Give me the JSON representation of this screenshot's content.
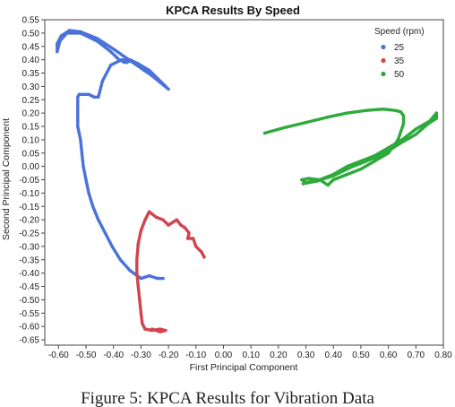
{
  "caption": "Figure 5: KPCA Results for Vibration Data",
  "chart_data": {
    "type": "scatter",
    "title": "KPCA Results By Speed",
    "xlabel": "First Principal Component",
    "ylabel": "Second Principal Component",
    "xlim": [
      -0.65,
      0.8
    ],
    "ylim": [
      -0.67,
      0.55
    ],
    "x_ticks": [
      -0.6,
      -0.5,
      -0.4,
      -0.3,
      -0.2,
      -0.1,
      0.0,
      0.1,
      0.2,
      0.3,
      0.4,
      0.5,
      0.6,
      0.7,
      0.8
    ],
    "x_tick_labels": [
      "-0.60",
      "-0.50",
      "-0.40",
      "-0.30",
      "-0.20",
      "-0.10",
      "0.00",
      "0.10",
      "0.20",
      "0.30",
      "0.40",
      "0.50",
      "0.60",
      "0.70",
      "0.80"
    ],
    "y_ticks": [
      0.55,
      0.5,
      0.45,
      0.4,
      0.35,
      0.3,
      0.25,
      0.2,
      0.15,
      0.1,
      0.05,
      0.0,
      -0.05,
      -0.1,
      -0.15,
      -0.2,
      -0.25,
      -0.3,
      -0.35,
      -0.4,
      -0.45,
      -0.5,
      -0.55,
      -0.6,
      -0.65
    ],
    "y_tick_labels": [
      "0.55",
      "0.50",
      "0.45",
      "0.40",
      "0.35",
      "0.30",
      "0.25",
      "0.20",
      "0.15",
      "0.10",
      "0.05",
      "0.00",
      "-0.05",
      "-0.10",
      "-0.15",
      "-0.20",
      "-0.25",
      "-0.30",
      "-0.35",
      "-0.40",
      "-0.45",
      "-0.50",
      "-0.55",
      "-0.60",
      "-0.65"
    ],
    "grid": false,
    "legend": {
      "title": "Speed (rpm)",
      "placement": "top-right",
      "entries": [
        "25",
        "35",
        "50"
      ]
    },
    "series": [
      {
        "name": "25",
        "color": "#4a72d8",
        "points": [
          [
            -0.2,
            0.29
          ],
          [
            -0.26,
            0.34
          ],
          [
            -0.33,
            0.39
          ],
          [
            -0.4,
            0.44
          ],
          [
            -0.46,
            0.48
          ],
          [
            -0.52,
            0.505
          ],
          [
            -0.56,
            0.51
          ],
          [
            -0.59,
            0.49
          ],
          [
            -0.605,
            0.46
          ],
          [
            -0.605,
            0.43
          ],
          [
            -0.595,
            0.47
          ],
          [
            -0.57,
            0.5
          ],
          [
            -0.52,
            0.5
          ],
          [
            -0.46,
            0.47
          ],
          [
            -0.41,
            0.43
          ],
          [
            -0.38,
            0.4
          ],
          [
            -0.36,
            0.39
          ],
          [
            -0.35,
            0.39
          ],
          [
            -0.34,
            0.4
          ],
          [
            -0.31,
            0.385
          ],
          [
            -0.27,
            0.36
          ],
          [
            -0.24,
            0.33
          ],
          [
            -0.21,
            0.3
          ],
          [
            -0.26,
            0.35
          ],
          [
            -0.32,
            0.39
          ],
          [
            -0.37,
            0.4
          ],
          [
            -0.41,
            0.38
          ],
          [
            -0.44,
            0.32
          ],
          [
            -0.455,
            0.26
          ],
          [
            -0.47,
            0.26
          ],
          [
            -0.49,
            0.27
          ],
          [
            -0.51,
            0.27
          ],
          [
            -0.525,
            0.27
          ],
          [
            -0.53,
            0.26
          ],
          [
            -0.53,
            0.23
          ],
          [
            -0.53,
            0.2
          ],
          [
            -0.53,
            0.15
          ],
          [
            -0.52,
            0.1
          ],
          [
            -0.515,
            0.05
          ],
          [
            -0.51,
            0.0
          ],
          [
            -0.5,
            -0.05
          ],
          [
            -0.49,
            -0.1
          ],
          [
            -0.475,
            -0.15
          ],
          [
            -0.455,
            -0.2
          ],
          [
            -0.43,
            -0.25
          ],
          [
            -0.405,
            -0.3
          ],
          [
            -0.375,
            -0.35
          ],
          [
            -0.34,
            -0.39
          ],
          [
            -0.3,
            -0.42
          ],
          [
            -0.27,
            -0.41
          ],
          [
            -0.24,
            -0.42
          ],
          [
            -0.22,
            -0.42
          ]
        ]
      },
      {
        "name": "35",
        "color": "#d04450",
        "points": [
          [
            -0.07,
            -0.34
          ],
          [
            -0.08,
            -0.32
          ],
          [
            -0.1,
            -0.3
          ],
          [
            -0.11,
            -0.27
          ],
          [
            -0.13,
            -0.27
          ],
          [
            -0.125,
            -0.25
          ],
          [
            -0.14,
            -0.23
          ],
          [
            -0.155,
            -0.22
          ],
          [
            -0.17,
            -0.2
          ],
          [
            -0.2,
            -0.22
          ],
          [
            -0.22,
            -0.2
          ],
          [
            -0.245,
            -0.19
          ],
          [
            -0.27,
            -0.17
          ],
          [
            -0.285,
            -0.2
          ],
          [
            -0.3,
            -0.24
          ],
          [
            -0.31,
            -0.29
          ],
          [
            -0.315,
            -0.35
          ],
          [
            -0.315,
            -0.4
          ],
          [
            -0.31,
            -0.45
          ],
          [
            -0.305,
            -0.5
          ],
          [
            -0.3,
            -0.55
          ],
          [
            -0.295,
            -0.59
          ],
          [
            -0.285,
            -0.61
          ],
          [
            -0.26,
            -0.615
          ],
          [
            -0.23,
            -0.61
          ],
          [
            -0.21,
            -0.615
          ],
          [
            -0.23,
            -0.62
          ],
          [
            -0.26,
            -0.61
          ]
        ]
      },
      {
        "name": "50",
        "color": "#2daa3b",
        "points": [
          [
            0.15,
            0.125
          ],
          [
            0.22,
            0.145
          ],
          [
            0.3,
            0.165
          ],
          [
            0.38,
            0.185
          ],
          [
            0.45,
            0.2
          ],
          [
            0.52,
            0.21
          ],
          [
            0.58,
            0.215
          ],
          [
            0.625,
            0.21
          ],
          [
            0.645,
            0.205
          ],
          [
            0.655,
            0.19
          ],
          [
            0.655,
            0.16
          ],
          [
            0.635,
            0.1
          ],
          [
            0.6,
            0.05
          ],
          [
            0.55,
            0.02
          ],
          [
            0.5,
            -0.01
          ],
          [
            0.45,
            -0.03
          ],
          [
            0.4,
            -0.05
          ],
          [
            0.38,
            -0.07
          ],
          [
            0.35,
            -0.05
          ],
          [
            0.31,
            -0.045
          ],
          [
            0.285,
            -0.05
          ],
          [
            0.3,
            -0.06
          ],
          [
            0.35,
            -0.05
          ],
          [
            0.4,
            -0.03
          ],
          [
            0.45,
            0.0
          ],
          [
            0.5,
            0.02
          ],
          [
            0.55,
            0.04
          ],
          [
            0.6,
            0.07
          ],
          [
            0.65,
            0.1
          ],
          [
            0.7,
            0.14
          ],
          [
            0.75,
            0.17
          ],
          [
            0.775,
            0.2
          ],
          [
            0.775,
            0.18
          ],
          [
            0.745,
            0.16
          ],
          [
            0.7,
            0.12
          ],
          [
            0.64,
            0.085
          ],
          [
            0.58,
            0.045
          ],
          [
            0.52,
            0.02
          ],
          [
            0.46,
            -0.005
          ],
          [
            0.4,
            -0.035
          ],
          [
            0.34,
            -0.055
          ],
          [
            0.29,
            -0.065
          ]
        ]
      }
    ]
  }
}
